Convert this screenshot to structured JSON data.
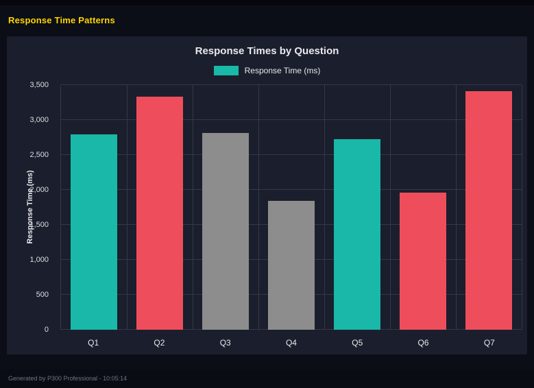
{
  "header": {
    "title": "Response Time Patterns",
    "title_color": "#ffd400"
  },
  "footer": {
    "text": "Generated by P300 Professional - 10:05:14"
  },
  "colors": {
    "teal": "#19b8a8",
    "red": "#ee4e5b",
    "gray": "#8d8d8d",
    "grid": "#343849",
    "card_background": "#1b1e2c",
    "page_background": "#0c0e17"
  },
  "chart_data": {
    "type": "bar",
    "title": "Response Times by Question",
    "legend_label": "Response Time (ms)",
    "legend_color": "#19b8a8",
    "legend_position": "top",
    "xlabel": "",
    "ylabel": "Response Time (ms)",
    "categories": [
      "Q1",
      "Q2",
      "Q3",
      "Q4",
      "Q5",
      "Q6",
      "Q7"
    ],
    "values": [
      2790,
      3330,
      2810,
      1845,
      2730,
      1960,
      3410
    ],
    "bar_colors": [
      "#19b8a8",
      "#ee4e5b",
      "#8d8d8d",
      "#8d8d8d",
      "#19b8a8",
      "#ee4e5b",
      "#ee4e5b"
    ],
    "ylim": [
      0,
      3500
    ],
    "ytick_step": 500,
    "grid": true
  }
}
